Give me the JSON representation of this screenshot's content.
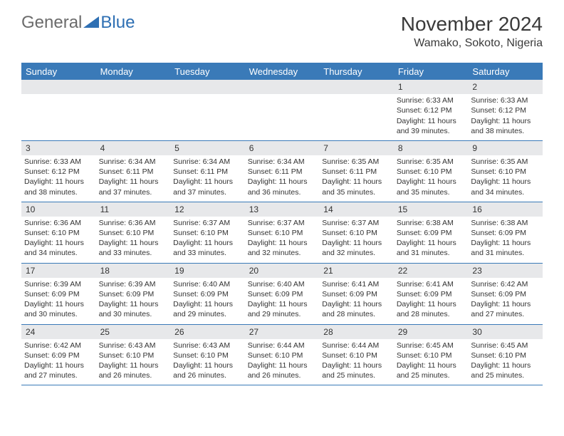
{
  "logo": {
    "text1": "General",
    "text2": "Blue",
    "color_gray": "#6b6b6b",
    "color_blue": "#2e6fb3"
  },
  "title": "November 2024",
  "location": "Wamako, Sokoto, Nigeria",
  "colors": {
    "header_bg": "#3a7ab8",
    "header_text": "#ffffff",
    "daynum_bg": "#e7e8ea",
    "border": "#3a7ab8",
    "body_text": "#333333",
    "page_bg": "#ffffff"
  },
  "day_names": [
    "Sunday",
    "Monday",
    "Tuesday",
    "Wednesday",
    "Thursday",
    "Friday",
    "Saturday"
  ],
  "weeks": [
    [
      {
        "n": "",
        "sr": "",
        "ss": "",
        "dl": ""
      },
      {
        "n": "",
        "sr": "",
        "ss": "",
        "dl": ""
      },
      {
        "n": "",
        "sr": "",
        "ss": "",
        "dl": ""
      },
      {
        "n": "",
        "sr": "",
        "ss": "",
        "dl": ""
      },
      {
        "n": "",
        "sr": "",
        "ss": "",
        "dl": ""
      },
      {
        "n": "1",
        "sr": "Sunrise: 6:33 AM",
        "ss": "Sunset: 6:12 PM",
        "dl": "Daylight: 11 hours and 39 minutes."
      },
      {
        "n": "2",
        "sr": "Sunrise: 6:33 AM",
        "ss": "Sunset: 6:12 PM",
        "dl": "Daylight: 11 hours and 38 minutes."
      }
    ],
    [
      {
        "n": "3",
        "sr": "Sunrise: 6:33 AM",
        "ss": "Sunset: 6:12 PM",
        "dl": "Daylight: 11 hours and 38 minutes."
      },
      {
        "n": "4",
        "sr": "Sunrise: 6:34 AM",
        "ss": "Sunset: 6:11 PM",
        "dl": "Daylight: 11 hours and 37 minutes."
      },
      {
        "n": "5",
        "sr": "Sunrise: 6:34 AM",
        "ss": "Sunset: 6:11 PM",
        "dl": "Daylight: 11 hours and 37 minutes."
      },
      {
        "n": "6",
        "sr": "Sunrise: 6:34 AM",
        "ss": "Sunset: 6:11 PM",
        "dl": "Daylight: 11 hours and 36 minutes."
      },
      {
        "n": "7",
        "sr": "Sunrise: 6:35 AM",
        "ss": "Sunset: 6:11 PM",
        "dl": "Daylight: 11 hours and 35 minutes."
      },
      {
        "n": "8",
        "sr": "Sunrise: 6:35 AM",
        "ss": "Sunset: 6:10 PM",
        "dl": "Daylight: 11 hours and 35 minutes."
      },
      {
        "n": "9",
        "sr": "Sunrise: 6:35 AM",
        "ss": "Sunset: 6:10 PM",
        "dl": "Daylight: 11 hours and 34 minutes."
      }
    ],
    [
      {
        "n": "10",
        "sr": "Sunrise: 6:36 AM",
        "ss": "Sunset: 6:10 PM",
        "dl": "Daylight: 11 hours and 34 minutes."
      },
      {
        "n": "11",
        "sr": "Sunrise: 6:36 AM",
        "ss": "Sunset: 6:10 PM",
        "dl": "Daylight: 11 hours and 33 minutes."
      },
      {
        "n": "12",
        "sr": "Sunrise: 6:37 AM",
        "ss": "Sunset: 6:10 PM",
        "dl": "Daylight: 11 hours and 33 minutes."
      },
      {
        "n": "13",
        "sr": "Sunrise: 6:37 AM",
        "ss": "Sunset: 6:10 PM",
        "dl": "Daylight: 11 hours and 32 minutes."
      },
      {
        "n": "14",
        "sr": "Sunrise: 6:37 AM",
        "ss": "Sunset: 6:10 PM",
        "dl": "Daylight: 11 hours and 32 minutes."
      },
      {
        "n": "15",
        "sr": "Sunrise: 6:38 AM",
        "ss": "Sunset: 6:09 PM",
        "dl": "Daylight: 11 hours and 31 minutes."
      },
      {
        "n": "16",
        "sr": "Sunrise: 6:38 AM",
        "ss": "Sunset: 6:09 PM",
        "dl": "Daylight: 11 hours and 31 minutes."
      }
    ],
    [
      {
        "n": "17",
        "sr": "Sunrise: 6:39 AM",
        "ss": "Sunset: 6:09 PM",
        "dl": "Daylight: 11 hours and 30 minutes."
      },
      {
        "n": "18",
        "sr": "Sunrise: 6:39 AM",
        "ss": "Sunset: 6:09 PM",
        "dl": "Daylight: 11 hours and 30 minutes."
      },
      {
        "n": "19",
        "sr": "Sunrise: 6:40 AM",
        "ss": "Sunset: 6:09 PM",
        "dl": "Daylight: 11 hours and 29 minutes."
      },
      {
        "n": "20",
        "sr": "Sunrise: 6:40 AM",
        "ss": "Sunset: 6:09 PM",
        "dl": "Daylight: 11 hours and 29 minutes."
      },
      {
        "n": "21",
        "sr": "Sunrise: 6:41 AM",
        "ss": "Sunset: 6:09 PM",
        "dl": "Daylight: 11 hours and 28 minutes."
      },
      {
        "n": "22",
        "sr": "Sunrise: 6:41 AM",
        "ss": "Sunset: 6:09 PM",
        "dl": "Daylight: 11 hours and 28 minutes."
      },
      {
        "n": "23",
        "sr": "Sunrise: 6:42 AM",
        "ss": "Sunset: 6:09 PM",
        "dl": "Daylight: 11 hours and 27 minutes."
      }
    ],
    [
      {
        "n": "24",
        "sr": "Sunrise: 6:42 AM",
        "ss": "Sunset: 6:09 PM",
        "dl": "Daylight: 11 hours and 27 minutes."
      },
      {
        "n": "25",
        "sr": "Sunrise: 6:43 AM",
        "ss": "Sunset: 6:10 PM",
        "dl": "Daylight: 11 hours and 26 minutes."
      },
      {
        "n": "26",
        "sr": "Sunrise: 6:43 AM",
        "ss": "Sunset: 6:10 PM",
        "dl": "Daylight: 11 hours and 26 minutes."
      },
      {
        "n": "27",
        "sr": "Sunrise: 6:44 AM",
        "ss": "Sunset: 6:10 PM",
        "dl": "Daylight: 11 hours and 26 minutes."
      },
      {
        "n": "28",
        "sr": "Sunrise: 6:44 AM",
        "ss": "Sunset: 6:10 PM",
        "dl": "Daylight: 11 hours and 25 minutes."
      },
      {
        "n": "29",
        "sr": "Sunrise: 6:45 AM",
        "ss": "Sunset: 6:10 PM",
        "dl": "Daylight: 11 hours and 25 minutes."
      },
      {
        "n": "30",
        "sr": "Sunrise: 6:45 AM",
        "ss": "Sunset: 6:10 PM",
        "dl": "Daylight: 11 hours and 25 minutes."
      }
    ]
  ]
}
